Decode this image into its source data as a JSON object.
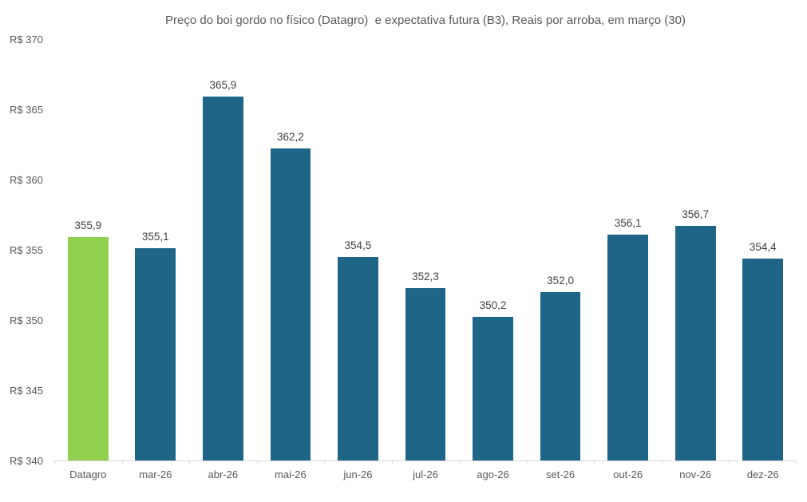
{
  "chart_data": {
    "type": "bar",
    "title": "Preço do boi gordo no físico (Datagro)  e expectativa futura (B3), Reais por arroba, em março (30)",
    "categories": [
      "Datagro",
      "mar-26",
      "abr-26",
      "mai-26",
      "jun-26",
      "jul-26",
      "ago-26",
      "set-26",
      "out-26",
      "nov-26",
      "dez-26"
    ],
    "values": [
      355.9,
      355.1,
      365.9,
      362.2,
      354.5,
      352.3,
      350.2,
      352.0,
      356.1,
      356.7,
      354.4
    ],
    "value_labels": [
      "355,9",
      "355,1",
      "365,9",
      "362,2",
      "354,5",
      "352,3",
      "350,2",
      "352,0",
      "356,1",
      "356,7",
      "354,4"
    ],
    "xlabel": "",
    "ylabel": "",
    "ylim": [
      340,
      370
    ],
    "y_ticks": [
      {
        "value": 370,
        "label": "R$ 370"
      },
      {
        "value": 365,
        "label": "R$ 365"
      },
      {
        "value": 360,
        "label": "R$ 360"
      },
      {
        "value": 355,
        "label": "R$ 355"
      },
      {
        "value": 350,
        "label": "R$ 350"
      },
      {
        "value": 345,
        "label": "R$ 345"
      },
      {
        "value": 340,
        "label": "R$ 340"
      }
    ],
    "grid": false,
    "legend": false,
    "highlight_index": 0,
    "colors": {
      "highlight_bar": "#92D050",
      "default_bar": "#1F6587",
      "axis_line": "#D9D9D9",
      "title_text": "#595959",
      "tick_text": "#595959",
      "value_text": "#404040"
    }
  }
}
